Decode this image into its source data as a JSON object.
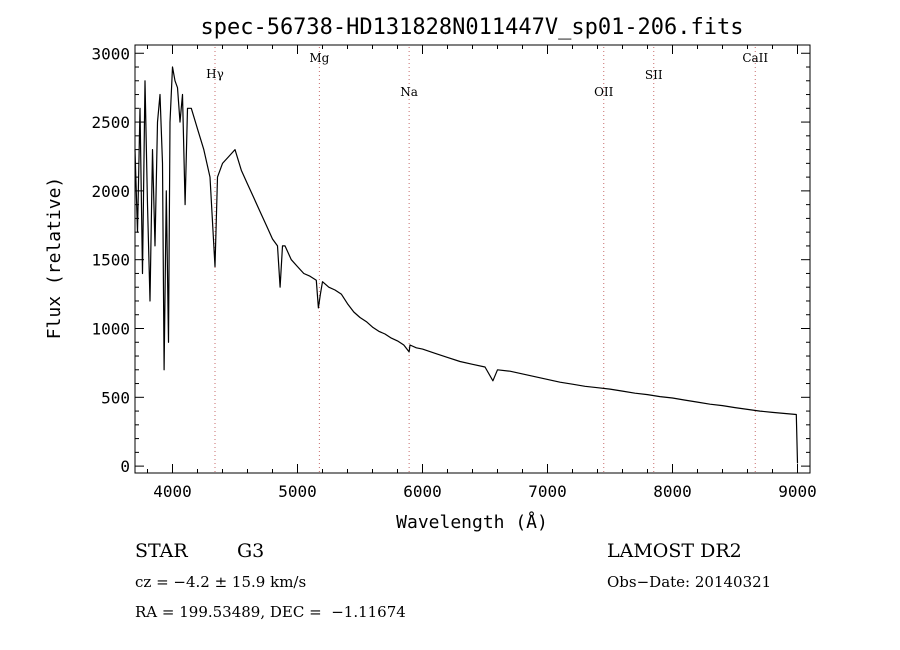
{
  "chart_data": {
    "type": "line",
    "title": "spec-56738-HD131828N011447V_sp01-206.fits",
    "xlabel": "Wavelength (Å)",
    "ylabel": "Flux (relative)",
    "xlim": [
      3700,
      9100
    ],
    "ylim": [
      -50,
      3060
    ],
    "xticks": [
      4000,
      5000,
      6000,
      7000,
      8000,
      9000
    ],
    "yticks": [
      0,
      500,
      1000,
      1500,
      2000,
      2500,
      3000
    ],
    "grid": false,
    "lines": [
      {
        "label": "Hγ",
        "x": 4340
      },
      {
        "label": "Mg",
        "x": 5175
      },
      {
        "label": "Na",
        "x": 5893
      },
      {
        "label": "OII",
        "x": 7450
      },
      {
        "label": "SII",
        "x": 7850
      },
      {
        "label": "CaII",
        "x": 8662
      }
    ],
    "series": [
      {
        "x": [
          3700,
          3720,
          3740,
          3760,
          3780,
          3800,
          3820,
          3840,
          3860,
          3880,
          3900,
          3920,
          3933,
          3950,
          3968,
          3980,
          4000,
          4020,
          4040,
          4060,
          4080,
          4101,
          4120,
          4150,
          4200,
          4250,
          4300,
          4340,
          4360,
          4400,
          4450,
          4500,
          4550,
          4600,
          4650,
          4700,
          4750,
          4800,
          4840,
          4861,
          4880,
          4900,
          4950,
          5000,
          5050,
          5100,
          5150,
          5167,
          5183,
          5200,
          5250,
          5300,
          5350,
          5400,
          5450,
          5500,
          5550,
          5600,
          5650,
          5700,
          5750,
          5800,
          5850,
          5893,
          5900,
          5950,
          6000,
          6100,
          6200,
          6300,
          6400,
          6500,
          6563,
          6600,
          6700,
          6800,
          6900,
          7000,
          7100,
          7200,
          7300,
          7400,
          7500,
          7600,
          7700,
          7800,
          7900,
          8000,
          8100,
          8200,
          8300,
          8400,
          8500,
          8600,
          8700,
          8800,
          8900,
          8990,
          9000
        ],
        "y": [
          2300,
          1700,
          2600,
          1400,
          2800,
          1900,
          1200,
          2300,
          1600,
          2500,
          2700,
          2200,
          700,
          2000,
          900,
          2500,
          2900,
          2800,
          2750,
          2500,
          2700,
          1900,
          2600,
          2600,
          2450,
          2300,
          2100,
          1450,
          2100,
          2200,
          2250,
          2300,
          2150,
          2050,
          1950,
          1850,
          1750,
          1650,
          1600,
          1300,
          1600,
          1600,
          1500,
          1450,
          1400,
          1380,
          1350,
          1150,
          1250,
          1340,
          1300,
          1280,
          1250,
          1180,
          1120,
          1080,
          1050,
          1010,
          980,
          960,
          930,
          910,
          880,
          830,
          880,
          860,
          850,
          820,
          790,
          760,
          740,
          720,
          620,
          700,
          690,
          670,
          650,
          630,
          610,
          595,
          580,
          570,
          560,
          545,
          530,
          520,
          505,
          495,
          480,
          465,
          450,
          440,
          425,
          412,
          400,
          390,
          382,
          375,
          20
        ]
      }
    ]
  },
  "info": {
    "class_label": "STAR",
    "subclass": "G3",
    "survey": "LAMOST DR2",
    "cz_text": "cz = −4.2 ± 15.9 km/s",
    "obs_date": "Obs−Date: 20140321",
    "coords": "RA = 199.53489, DEC =  −1.11674"
  }
}
